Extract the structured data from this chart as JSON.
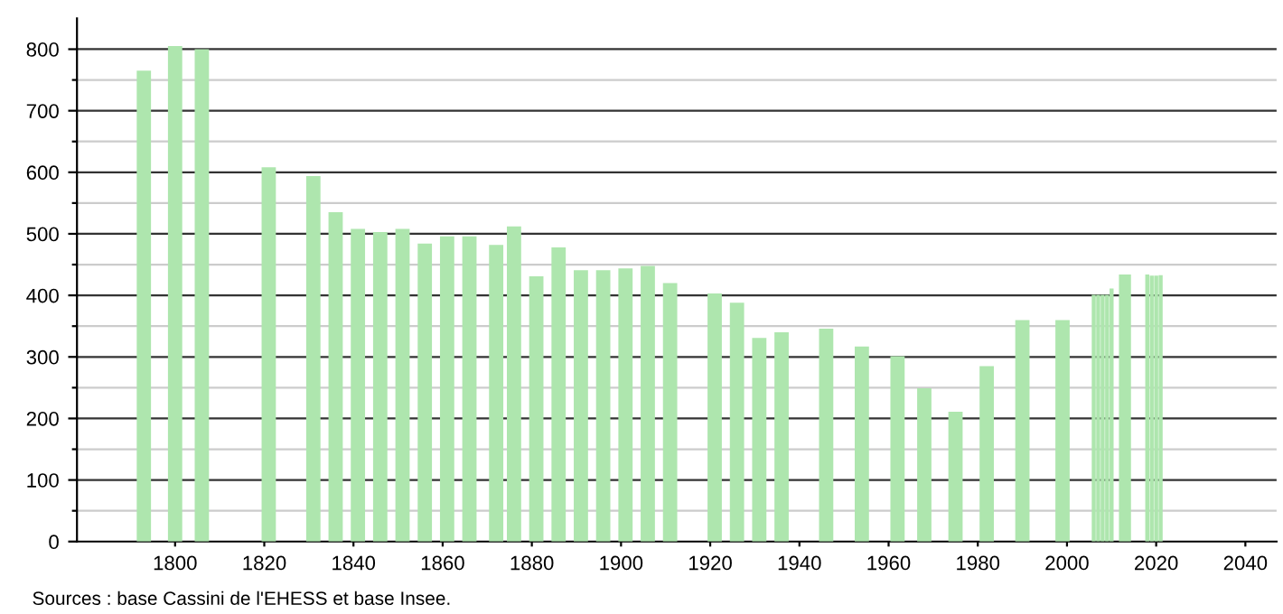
{
  "chart_data": {
    "type": "bar",
    "color": "#aee6ae",
    "x": [
      1793,
      1800,
      1806,
      1821,
      1831,
      1836,
      1841,
      1846,
      1851,
      1856,
      1861,
      1866,
      1872,
      1876,
      1881,
      1886,
      1891,
      1896,
      1901,
      1906,
      1911,
      1921,
      1926,
      1931,
      1936,
      1946,
      1954,
      1962,
      1968,
      1975,
      1982,
      1990,
      1999,
      2006,
      2007,
      2008,
      2009,
      2010,
      2013,
      2018,
      2019,
      2020,
      2021
    ],
    "values": [
      765,
      805,
      800,
      608,
      594,
      535,
      508,
      503,
      508,
      484,
      496,
      496,
      482,
      512,
      431,
      478,
      441,
      441,
      444,
      448,
      420,
      403,
      388,
      331,
      340,
      346,
      317,
      301,
      249,
      211,
      285,
      360,
      360,
      401,
      401,
      401,
      401,
      411,
      434,
      434,
      432,
      432,
      433
    ],
    "xlim": [
      1778,
      2047
    ],
    "xticks": [
      1800,
      1820,
      1840,
      1860,
      1880,
      1900,
      1920,
      1940,
      1960,
      1980,
      2000,
      2020,
      2040
    ],
    "ylim": [
      0,
      850
    ],
    "yticks": [
      0,
      {
        "value": 50,
        "label": null
      },
      100,
      {
        "value": 150,
        "label": null
      },
      200,
      {
        "value": 250,
        "label": null
      },
      300,
      {
        "value": 350,
        "label": null
      },
      400,
      {
        "value": 450,
        "label": null
      },
      500,
      {
        "value": 550,
        "label": null
      },
      600,
      {
        "value": 650,
        "label": null
      },
      700,
      {
        "value": 750,
        "label": null
      },
      800
    ],
    "grid": "y",
    "annotations": [
      "Sources : base Cassini de l'EHESS et base Insee."
    ]
  }
}
